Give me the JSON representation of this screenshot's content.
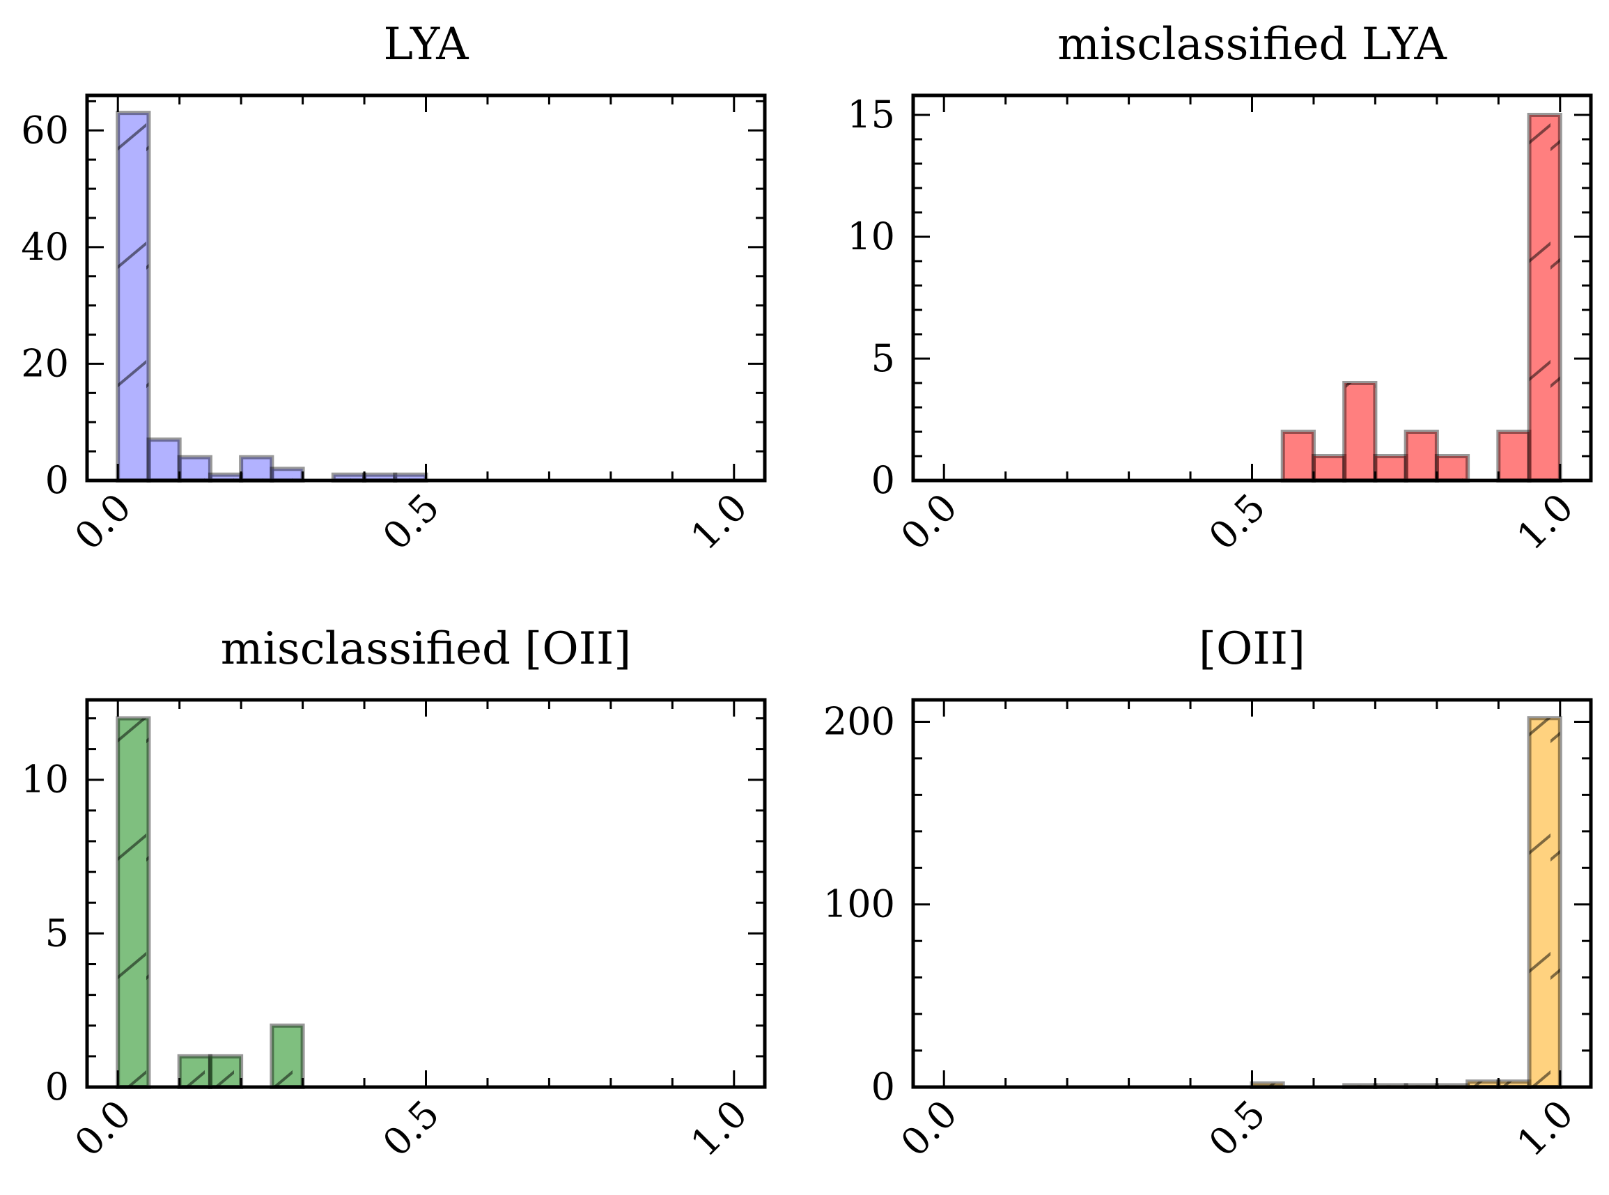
{
  "chart_data": [
    {
      "type": "bar",
      "title": "LYA",
      "color": "#6666ff",
      "bin_edges": [
        0.0,
        0.05,
        0.1,
        0.15,
        0.2,
        0.25,
        0.3,
        0.35,
        0.4,
        0.45,
        0.5,
        0.55,
        0.6,
        0.65,
        0.7,
        0.75,
        0.8,
        0.85,
        0.9,
        0.95,
        1.0
      ],
      "values": [
        63,
        7,
        4,
        1,
        4,
        2,
        0,
        1,
        1,
        1,
        0,
        0,
        0,
        0,
        0,
        0,
        0,
        0,
        0,
        0
      ],
      "xlim": [
        -0.05,
        1.05
      ],
      "ylim": [
        0,
        66
      ],
      "xticks": [
        0.0,
        0.5,
        1.0
      ],
      "xtick_labels": [
        "0.0",
        "0.5",
        "1.0"
      ],
      "yticks": [
        0,
        20,
        40,
        60
      ],
      "ytick_labels": [
        "0",
        "20",
        "40",
        "60"
      ],
      "yminor_step": 5,
      "hatch": "/"
    },
    {
      "type": "bar",
      "title": "misclassified LYA",
      "color": "#ff0000",
      "bin_edges": [
        0.0,
        0.05,
        0.1,
        0.15,
        0.2,
        0.25,
        0.3,
        0.35,
        0.4,
        0.45,
        0.5,
        0.55,
        0.6,
        0.65,
        0.7,
        0.75,
        0.8,
        0.85,
        0.9,
        0.95,
        1.0
      ],
      "values": [
        0,
        0,
        0,
        0,
        0,
        0,
        0,
        0,
        0,
        0,
        0,
        2,
        1,
        4,
        1,
        2,
        1,
        0,
        2,
        15
      ],
      "xlim": [
        -0.05,
        1.05
      ],
      "ylim": [
        0,
        15.8
      ],
      "xticks": [
        0.0,
        0.5,
        1.0
      ],
      "xtick_labels": [
        "0.0",
        "0.5",
        "1.0"
      ],
      "yticks": [
        0,
        5,
        10,
        15
      ],
      "ytick_labels": [
        "0",
        "5",
        "10",
        "15"
      ],
      "yminor_step": 1,
      "hatch": "/"
    },
    {
      "type": "bar",
      "title": "misclassified [OII]",
      "color": "#008000",
      "bin_edges": [
        0.0,
        0.05,
        0.1,
        0.15,
        0.2,
        0.25,
        0.3,
        0.35,
        0.4,
        0.45,
        0.5,
        0.55,
        0.6,
        0.65,
        0.7,
        0.75,
        0.8,
        0.85,
        0.9,
        0.95,
        1.0
      ],
      "values": [
        12,
        0,
        1,
        1,
        0,
        2,
        0,
        0,
        0,
        0,
        0,
        0,
        0,
        0,
        0,
        0,
        0,
        0,
        0,
        0
      ],
      "xlim": [
        -0.05,
        1.05
      ],
      "ylim": [
        0,
        12.6
      ],
      "xticks": [
        0.0,
        0.5,
        1.0
      ],
      "xtick_labels": [
        "0.0",
        "0.5",
        "1.0"
      ],
      "yticks": [
        0,
        5,
        10
      ],
      "ytick_labels": [
        "0",
        "5",
        "10"
      ],
      "yminor_step": 1,
      "hatch": "/"
    },
    {
      "type": "bar",
      "title": "[OII]",
      "color": "#ffa500",
      "bin_edges": [
        0.0,
        0.05,
        0.1,
        0.15,
        0.2,
        0.25,
        0.3,
        0.35,
        0.4,
        0.45,
        0.5,
        0.55,
        0.6,
        0.65,
        0.7,
        0.75,
        0.8,
        0.85,
        0.9,
        0.95,
        1.0
      ],
      "values": [
        0,
        0,
        0,
        0,
        0,
        0,
        0,
        0,
        0,
        0,
        2,
        0,
        0,
        1,
        1,
        1,
        1,
        3,
        3,
        202
      ],
      "xlim": [
        -0.05,
        1.05
      ],
      "ylim": [
        0,
        212
      ],
      "xticks": [
        0.0,
        0.5,
        1.0
      ],
      "xtick_labels": [
        "0.0",
        "0.5",
        "1.0"
      ],
      "yticks": [
        0,
        100,
        200
      ],
      "ytick_labels": [
        "0",
        "100",
        "200"
      ],
      "yminor_step": 20,
      "hatch": "/"
    }
  ]
}
